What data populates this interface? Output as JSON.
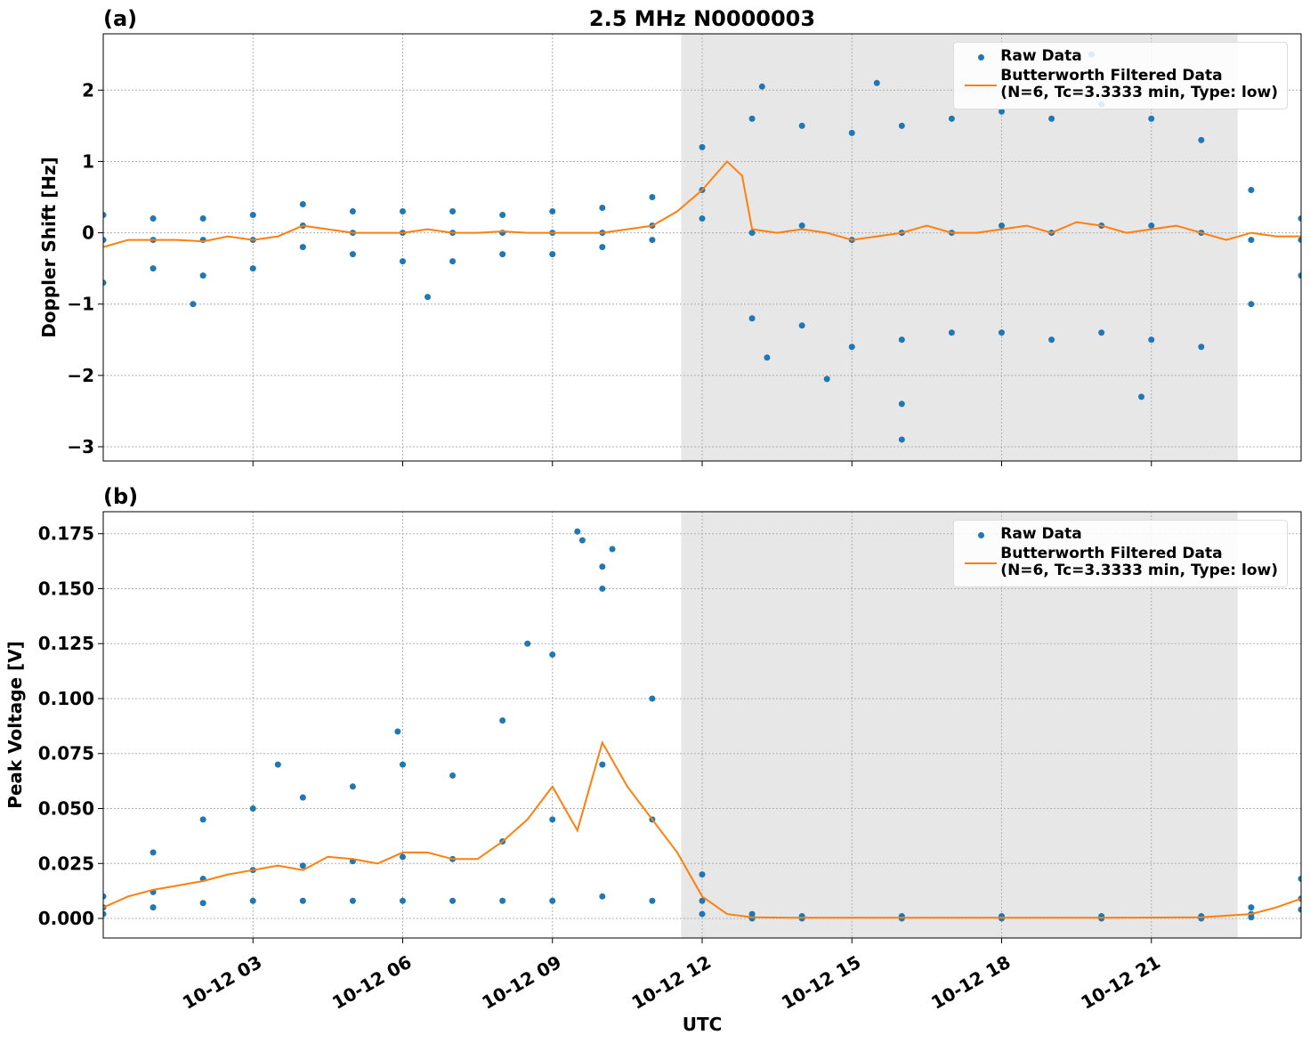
{
  "chart_data": [
    {
      "type": "line",
      "title": "2.5 MHz N0000003",
      "panel_label": "(a)",
      "ylabel": "Doppler Shift [Hz]",
      "xlim": [
        0,
        24
      ],
      "xticks": [
        3,
        6,
        9,
        12,
        15,
        18,
        21
      ],
      "ylim": [
        -3.2,
        2.79
      ],
      "yticks": [
        {
          "value": -3,
          "label": "−3"
        },
        {
          "value": -2,
          "label": "−2"
        },
        {
          "value": -1,
          "label": "−1"
        },
        0,
        1,
        2
      ],
      "grid": true,
      "shade": [
        11.58,
        22.73
      ],
      "legend": "upper right",
      "series": [
        {
          "name": "Raw Data",
          "type": "scatter",
          "color": "#1f77b4",
          "x": [
            0,
            0,
            0,
            1,
            1,
            1,
            2,
            2,
            2,
            3,
            3,
            3,
            4,
            4,
            4,
            5,
            5,
            5,
            6,
            6,
            6,
            7,
            7,
            7,
            8,
            8,
            8,
            9,
            9,
            9,
            10,
            10,
            10,
            11,
            11,
            11,
            12,
            12,
            12,
            13,
            13,
            13,
            14,
            14,
            14,
            15,
            15,
            15,
            16,
            16,
            16,
            17,
            17,
            17,
            18,
            18,
            18,
            19,
            19,
            19,
            20,
            20,
            20,
            21,
            21,
            21,
            22,
            22,
            22,
            23,
            23,
            23,
            24,
            24,
            24,
            13.2,
            15.5,
            16,
            16,
            20.8,
            19.8,
            1.8,
            6.5,
            13.3,
            14.5
          ],
          "values": [
            0.25,
            -0.1,
            -0.7,
            0.2,
            -0.1,
            -0.5,
            0.2,
            -0.1,
            -0.6,
            0.25,
            -0.1,
            -0.5,
            0.4,
            0.1,
            -0.2,
            0.3,
            0.0,
            -0.3,
            0.3,
            0.0,
            -0.4,
            0.3,
            0.0,
            -0.4,
            0.25,
            0.0,
            -0.3,
            0.3,
            0.0,
            -0.3,
            0.35,
            0.0,
            -0.2,
            0.5,
            0.1,
            -0.1,
            1.2,
            0.6,
            0.2,
            1.6,
            0.0,
            -1.2,
            1.5,
            0.1,
            -1.3,
            1.4,
            -0.1,
            -1.6,
            1.5,
            0.0,
            -1.5,
            1.6,
            0.0,
            -1.4,
            1.7,
            0.1,
            -1.4,
            1.6,
            0.0,
            -1.5,
            1.8,
            0.1,
            -1.4,
            1.6,
            0.1,
            -1.5,
            1.3,
            0.0,
            -1.6,
            0.6,
            -0.1,
            -1.0,
            0.2,
            -0.1,
            -0.6,
            2.05,
            2.1,
            -2.9,
            -2.4,
            -2.3,
            2.5,
            -1.0,
            -0.9,
            -1.75,
            -2.05
          ]
        },
        {
          "name": "Butterworth Filtered Data\n(N=6, Tc=3.3333 min, Type: low)",
          "type": "line",
          "color": "#ff7f0e",
          "x": [
            0,
            0.5,
            1,
            1.5,
            2,
            2.5,
            3,
            3.5,
            4,
            4.5,
            5,
            5.5,
            6,
            6.5,
            7,
            7.5,
            8,
            8.5,
            9,
            9.5,
            10,
            10.5,
            11,
            11.5,
            12,
            12.5,
            12.8,
            13,
            13.5,
            14,
            14.5,
            15,
            15.5,
            16,
            16.5,
            17,
            17.5,
            18,
            18.5,
            19,
            19.5,
            20,
            20.5,
            21,
            21.5,
            22,
            22.5,
            23,
            23.5,
            24
          ],
          "values": [
            -0.2,
            -0.1,
            -0.1,
            -0.1,
            -0.12,
            -0.05,
            -0.1,
            -0.05,
            0.1,
            0.05,
            0.0,
            0.0,
            0.0,
            0.05,
            0.0,
            0.0,
            0.02,
            0.0,
            0.0,
            0.0,
            0.0,
            0.05,
            0.1,
            0.3,
            0.6,
            1.0,
            0.8,
            0.05,
            0.0,
            0.05,
            0.0,
            -0.1,
            -0.05,
            0.0,
            0.1,
            0.0,
            0.0,
            0.05,
            0.1,
            0.0,
            0.15,
            0.1,
            0.0,
            0.05,
            0.1,
            0.0,
            -0.1,
            0.0,
            -0.05,
            -0.05
          ]
        }
      ]
    },
    {
      "type": "line",
      "panel_label": "(b)",
      "ylabel": "Peak Voltage [V]",
      "xlabel": "UTC",
      "xlim": [
        0,
        24
      ],
      "xticks": [
        {
          "value": 3,
          "label": "10-12 03"
        },
        {
          "value": 6,
          "label": "10-12 06"
        },
        {
          "value": 9,
          "label": "10-12 09"
        },
        {
          "value": 12,
          "label": "10-12 12"
        },
        {
          "value": 15,
          "label": "10-12 15"
        },
        {
          "value": 18,
          "label": "10-12 18"
        },
        {
          "value": 21,
          "label": "10-12 21"
        }
      ],
      "ylim": [
        -0.0089,
        0.185
      ],
      "yticks": [
        {
          "value": 0,
          "label": "0.000"
        },
        0.025,
        {
          "value": 0.05,
          "label": "0.050"
        },
        0.075,
        {
          "value": 0.1,
          "label": "0.100"
        },
        0.125,
        {
          "value": 0.15,
          "label": "0.150"
        },
        0.175
      ],
      "grid": true,
      "shade": [
        11.58,
        22.73
      ],
      "legend": "upper right",
      "series": [
        {
          "name": "Raw Data",
          "type": "scatter",
          "color": "#1f77b4",
          "x": [
            0,
            0,
            0,
            1,
            1,
            1,
            2,
            2,
            2,
            3,
            3,
            3,
            4,
            4,
            4,
            5,
            5,
            5,
            6,
            6,
            6,
            7,
            7,
            7,
            8,
            8,
            8,
            9,
            9,
            9,
            10,
            10,
            10,
            11,
            11,
            11,
            12,
            12,
            12,
            13,
            13,
            13,
            14,
            14,
            14,
            16,
            16,
            16,
            18,
            18,
            18,
            20,
            20,
            20,
            22,
            22,
            22,
            23,
            23,
            23,
            24,
            24,
            24,
            9.5,
            9.6,
            10.2,
            10,
            8.5,
            3.5,
            5.9
          ],
          "values": [
            0.01,
            0.005,
            0.002,
            0.03,
            0.012,
            0.005,
            0.045,
            0.018,
            0.007,
            0.05,
            0.022,
            0.008,
            0.055,
            0.024,
            0.008,
            0.06,
            0.026,
            0.008,
            0.07,
            0.028,
            0.008,
            0.065,
            0.027,
            0.008,
            0.09,
            0.035,
            0.008,
            0.12,
            0.045,
            0.008,
            0.15,
            0.07,
            0.01,
            0.1,
            0.045,
            0.008,
            0.02,
            0.008,
            0.002,
            0.002,
            0.0005,
            0,
            0.001,
            0.0003,
            0,
            0.001,
            0.0003,
            0,
            0.001,
            0.0003,
            0,
            0.001,
            0.0003,
            0,
            0.001,
            0.0003,
            0,
            0.005,
            0.002,
            0.0005,
            0.018,
            0.009,
            0.004,
            0.176,
            0.172,
            0.168,
            0.16,
            0.125,
            0.07,
            0.085
          ]
        },
        {
          "name": "Butterworth Filtered Data\n(N=6, Tc=3.3333 min, Type: low)",
          "type": "line",
          "color": "#ff7f0e",
          "x": [
            0,
            0.5,
            1,
            1.5,
            2,
            2.5,
            3,
            3.5,
            4,
            4.5,
            5,
            5.5,
            6,
            6.5,
            7,
            7.5,
            8,
            8.5,
            9,
            9.5,
            10,
            10.5,
            11,
            11.5,
            12,
            12.5,
            13,
            14,
            16,
            18,
            20,
            22,
            23,
            23.5,
            24
          ],
          "values": [
            0.005,
            0.01,
            0.013,
            0.015,
            0.017,
            0.02,
            0.022,
            0.024,
            0.022,
            0.028,
            0.027,
            0.025,
            0.03,
            0.03,
            0.027,
            0.027,
            0.035,
            0.045,
            0.06,
            0.04,
            0.08,
            0.06,
            0.045,
            0.03,
            0.01,
            0.002,
            0.0005,
            0.0003,
            0.0003,
            0.0003,
            0.0003,
            0.0005,
            0.002,
            0.005,
            0.009
          ]
        }
      ]
    }
  ]
}
